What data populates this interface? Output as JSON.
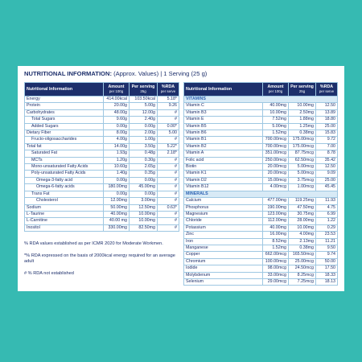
{
  "header": {
    "title": "NUTRITIONAL INFORMATION:",
    "subtitle": "(Approx. Values) | 1 Serving (25 g)"
  },
  "columns": [
    {
      "name": "Nutritional Information"
    },
    {
      "name": "Amount",
      "unit": "per 100g"
    },
    {
      "name": "Per serving",
      "unit": "25g"
    },
    {
      "name": "%RDA",
      "unit": "per serve"
    }
  ],
  "left": {
    "rows": [
      [
        "Energy",
        "414.00kcal",
        "103.50kcal",
        "5.18*"
      ],
      [
        "Protein",
        "20.00g",
        "5.00g",
        "9.26"
      ],
      [
        "Carbohydrates",
        "48.00g",
        "12.00g",
        "#"
      ],
      [
        "Total Sugars",
        "9.60g",
        "2.40g",
        "#"
      ],
      [
        "Added Sugars",
        "0.00g",
        "0.00g",
        "0.00*"
      ],
      [
        "Dietary Fiber",
        "8.00g",
        "2.00g",
        "5.00"
      ],
      [
        "Fructo-oligosaccharides",
        "4.00g",
        "1.00g",
        "#"
      ],
      [
        "Total fat",
        "14.00g",
        "3.50g",
        "5.22*"
      ],
      [
        "Saturated Fat",
        "1.93g",
        "0.48g",
        "2.18*"
      ],
      [
        "MCTs",
        "1.20g",
        "0.30g",
        "#"
      ],
      [
        "Mono-unsaturated Fatty Acids",
        "10.60g",
        "2.65g",
        "#"
      ],
      [
        "Poly-unsaturated Fatty Acids",
        "1.40g",
        "0.35g",
        "#"
      ],
      [
        "Omega-3-fatty acid",
        "0.00g",
        "0.00g",
        "#"
      ],
      [
        "Omega-6-fatty acids",
        "180.00mg",
        "45.00mg",
        "#"
      ],
      [
        "Trans Fat",
        "0.00g",
        "0.00g",
        "#"
      ],
      [
        "Cholesterol",
        "12.00mg",
        "3.00mg",
        "#"
      ],
      [
        "Sodium",
        "50.00mg",
        "12.50mg",
        "0.63*"
      ],
      [
        "L-Taurine",
        "40.00mg",
        "10.00mg",
        "#"
      ],
      [
        "L-Carnitine",
        "40.00 mg",
        "10.00mg",
        "#"
      ],
      [
        "Inositol",
        "330.00mg",
        "82.50mg",
        "#"
      ]
    ]
  },
  "right": {
    "sections": [
      {
        "title": "VITAMINS",
        "rows": [
          [
            "Vitamin C",
            "40.00mg",
            "10.00mg",
            "12.50"
          ],
          [
            "Vitamin B3",
            "10.00mg",
            "2.50mg",
            "13.89"
          ],
          [
            "Vitamin E",
            "7.52mg",
            "1.88mg",
            "18.80"
          ],
          [
            "Vitamin B5",
            "5.00mg",
            "1.25mg",
            "25.00"
          ],
          [
            "Vitamin B6",
            "1.52mg",
            "0.38mg",
            "15.83"
          ],
          [
            "Vitamin B1",
            "700.00mcg",
            "175.00mcg",
            "9.72"
          ],
          [
            "Vitamin B2",
            "700.00mcg",
            "175.00mcg",
            "7.00"
          ],
          [
            "Vitamin A",
            "351.00mcg",
            "87.75mcg",
            "8.78"
          ],
          [
            "Folic acid",
            "250.00mcg",
            "62.50mcg",
            "35.42"
          ],
          [
            "Biotin",
            "20.00mcg",
            "5.00mcg",
            "12.50"
          ],
          [
            "Vitamin K1",
            "20.00mcg",
            "5.00mcg",
            "9.09"
          ],
          [
            "Vitamin D2",
            "15.00mcg",
            "3.75mcg",
            "25.00"
          ],
          [
            "Vitamin B12",
            "4.00mcg",
            "1.00mcg",
            "45.45"
          ]
        ]
      },
      {
        "title": "MINERALS",
        "rows": [
          [
            "Calcium",
            "477.00mg",
            "119.25mg",
            "11.93"
          ],
          [
            "Phosphorus",
            "190.00mg",
            "47.50mg",
            "4.75"
          ],
          [
            "Magnesium",
            "123.00mg",
            "30.75mg",
            "6.99"
          ],
          [
            "Chloride",
            "112.00mg",
            "28.00mg",
            "1.22"
          ],
          [
            "Potassium",
            "40.00mg",
            "10.00mg",
            "0.29"
          ],
          [
            "Zinc",
            "16.00mg",
            "4.00mg",
            "23.53"
          ],
          [
            "Iron",
            "8.52mg",
            "2.13mg",
            "11.21"
          ],
          [
            "Manganese",
            "1.52mg",
            "0.38mg",
            "9.50"
          ],
          [
            "Copper",
            "662.00mcg",
            "165.50mcg",
            "9.74"
          ],
          [
            "Chromium",
            "100.00mcg",
            "25.00mcg",
            "50.00"
          ],
          [
            "Iodide",
            "98.00mcg",
            "24.50mcg",
            "17.50"
          ],
          [
            "Molybdenum",
            "33.00mcg",
            "8.25mcg",
            "18.33"
          ],
          [
            "Selenium",
            "29.00mcg",
            "7.25mcg",
            "18.13"
          ]
        ]
      }
    ]
  },
  "notes": [
    "% RDA values established as per ICMR 2020 for Moderate Workmen.",
    "*% RDA expressed on the basis of 2000kcal energy required for an average adult",
    "# % RDA not established"
  ]
}
